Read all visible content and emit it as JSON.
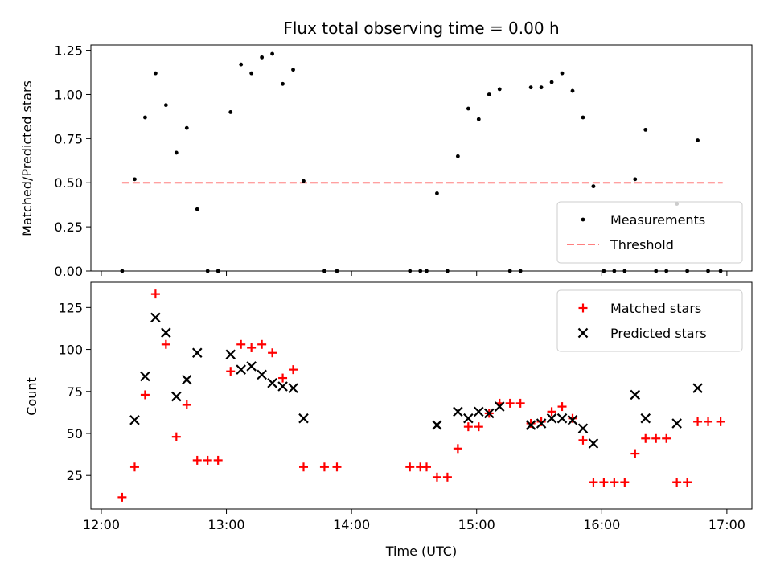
{
  "chart_data": [
    {
      "type": "scatter",
      "title": "Flux total observing time = 0.00 h",
      "xlabel": "",
      "ylabel": "Matched/Predicted stars",
      "xlim": [
        "11:55",
        "17:12"
      ],
      "ylim": [
        0,
        1.28
      ],
      "xticks": [
        "12:00",
        "13:00",
        "14:00",
        "15:00",
        "16:00",
        "17:00"
      ],
      "xtick_labels_shown": false,
      "yticks": [
        0.0,
        0.25,
        0.5,
        0.75,
        1.0,
        1.25
      ],
      "ytick_labels": [
        "0.00",
        "0.25",
        "0.50",
        "0.75",
        "1.00",
        "1.25"
      ],
      "legend_position": "lower-right",
      "threshold": {
        "name": "Threshold",
        "y": 0.5,
        "x_start": "12:10",
        "x_end": "16:58",
        "color": "#ff8080",
        "style": "dashed"
      },
      "series": [
        {
          "name": "Measurements",
          "marker": "dot",
          "color": "#000000",
          "points": [
            [
              "12:10",
              0.0
            ],
            [
              "12:16",
              0.52
            ],
            [
              "12:21",
              0.87
            ],
            [
              "12:26",
              1.12
            ],
            [
              "12:31",
              0.94
            ],
            [
              "12:36",
              0.67
            ],
            [
              "12:41",
              0.81
            ],
            [
              "12:46",
              0.35
            ],
            [
              "12:51",
              0.0
            ],
            [
              "12:56",
              0.0
            ],
            [
              "13:02",
              0.9
            ],
            [
              "13:07",
              1.17
            ],
            [
              "13:12",
              1.12
            ],
            [
              "13:17",
              1.21
            ],
            [
              "13:22",
              1.23
            ],
            [
              "13:27",
              1.06
            ],
            [
              "13:32",
              1.14
            ],
            [
              "13:37",
              0.51
            ],
            [
              "13:47",
              0.0
            ],
            [
              "13:53",
              0.0
            ],
            [
              "14:28",
              0.0
            ],
            [
              "14:33",
              0.0
            ],
            [
              "14:36",
              0.0
            ],
            [
              "14:41",
              0.44
            ],
            [
              "14:46",
              0.0
            ],
            [
              "14:51",
              0.65
            ],
            [
              "14:56",
              0.92
            ],
            [
              "15:01",
              0.86
            ],
            [
              "15:06",
              1.0
            ],
            [
              "15:11",
              1.03
            ],
            [
              "15:16",
              0.0
            ],
            [
              "15:21",
              0.0
            ],
            [
              "15:26",
              1.04
            ],
            [
              "15:31",
              1.04
            ],
            [
              "15:36",
              1.07
            ],
            [
              "15:41",
              1.12
            ],
            [
              "15:46",
              1.02
            ],
            [
              "15:51",
              0.87
            ],
            [
              "15:56",
              0.48
            ],
            [
              "16:01",
              0.0
            ],
            [
              "16:06",
              0.0
            ],
            [
              "16:11",
              0.0
            ],
            [
              "16:16",
              0.52
            ],
            [
              "16:21",
              0.8
            ],
            [
              "16:26",
              0.0
            ],
            [
              "16:31",
              0.0
            ],
            [
              "16:36",
              0.38
            ],
            [
              "16:41",
              0.0
            ],
            [
              "16:46",
              0.74
            ],
            [
              "16:51",
              0.0
            ],
            [
              "16:57",
              0.0
            ]
          ]
        }
      ]
    },
    {
      "type": "scatter",
      "title": "",
      "xlabel": "Time (UTC)",
      "ylabel": "Count",
      "xlim": [
        "11:55",
        "17:12"
      ],
      "ylim": [
        5,
        140
      ],
      "xticks": [
        "12:00",
        "13:00",
        "14:00",
        "15:00",
        "16:00",
        "17:00"
      ],
      "yticks": [
        25,
        50,
        75,
        100,
        125
      ],
      "legend_position": "upper-right",
      "series": [
        {
          "name": "Matched stars",
          "marker": "plus",
          "color": "#ff0000",
          "points": [
            [
              "12:10",
              12
            ],
            [
              "12:16",
              30
            ],
            [
              "12:21",
              73
            ],
            [
              "12:26",
              133
            ],
            [
              "12:31",
              103
            ],
            [
              "12:36",
              48
            ],
            [
              "12:41",
              67
            ],
            [
              "12:46",
              34
            ],
            [
              "12:51",
              34
            ],
            [
              "12:56",
              34
            ],
            [
              "13:02",
              87
            ],
            [
              "13:07",
              103
            ],
            [
              "13:12",
              101
            ],
            [
              "13:17",
              103
            ],
            [
              "13:22",
              98
            ],
            [
              "13:27",
              83
            ],
            [
              "13:32",
              88
            ],
            [
              "13:37",
              30
            ],
            [
              "13:47",
              30
            ],
            [
              "13:53",
              30
            ],
            [
              "14:28",
              30
            ],
            [
              "14:33",
              30
            ],
            [
              "14:36",
              30
            ],
            [
              "14:41",
              24
            ],
            [
              "14:46",
              24
            ],
            [
              "14:51",
              41
            ],
            [
              "14:56",
              54
            ],
            [
              "15:01",
              54
            ],
            [
              "15:06",
              62
            ],
            [
              "15:11",
              68
            ],
            [
              "15:16",
              68
            ],
            [
              "15:21",
              68
            ],
            [
              "15:26",
              56
            ],
            [
              "15:31",
              57
            ],
            [
              "15:36",
              63
            ],
            [
              "15:41",
              66
            ],
            [
              "15:46",
              59
            ],
            [
              "15:51",
              46
            ],
            [
              "15:56",
              21
            ],
            [
              "16:01",
              21
            ],
            [
              "16:06",
              21
            ],
            [
              "16:11",
              21
            ],
            [
              "16:16",
              38
            ],
            [
              "16:21",
              47
            ],
            [
              "16:26",
              47
            ],
            [
              "16:31",
              47
            ],
            [
              "16:36",
              21
            ],
            [
              "16:41",
              21
            ],
            [
              "16:46",
              57
            ],
            [
              "16:51",
              57
            ],
            [
              "16:57",
              57
            ]
          ]
        },
        {
          "name": "Predicted stars",
          "marker": "x",
          "color": "#000000",
          "points": [
            [
              "12:16",
              58
            ],
            [
              "12:21",
              84
            ],
            [
              "12:26",
              119
            ],
            [
              "12:31",
              110
            ],
            [
              "12:36",
              72
            ],
            [
              "12:41",
              82
            ],
            [
              "12:46",
              98
            ],
            [
              "13:02",
              97
            ],
            [
              "13:07",
              88
            ],
            [
              "13:12",
              90
            ],
            [
              "13:17",
              85
            ],
            [
              "13:22",
              80
            ],
            [
              "13:27",
              78
            ],
            [
              "13:32",
              77
            ],
            [
              "13:37",
              59
            ],
            [
              "14:41",
              55
            ],
            [
              "14:51",
              63
            ],
            [
              "14:56",
              59
            ],
            [
              "15:01",
              63
            ],
            [
              "15:06",
              62
            ],
            [
              "15:11",
              66
            ],
            [
              "15:26",
              55
            ],
            [
              "15:31",
              56
            ],
            [
              "15:36",
              59
            ],
            [
              "15:41",
              59
            ],
            [
              "15:46",
              58
            ],
            [
              "15:51",
              53
            ],
            [
              "15:56",
              44
            ],
            [
              "16:16",
              73
            ],
            [
              "16:21",
              59
            ],
            [
              "16:36",
              56
            ],
            [
              "16:46",
              77
            ]
          ]
        }
      ]
    }
  ]
}
